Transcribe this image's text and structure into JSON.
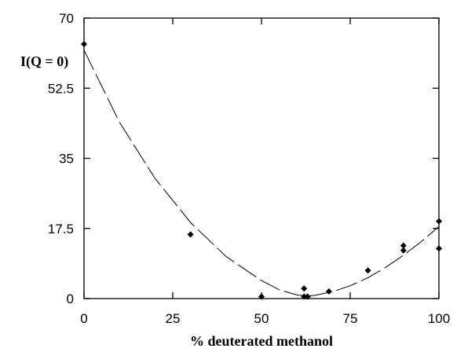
{
  "chart_data": {
    "type": "scatter",
    "xlabel": "% deuterated methanol",
    "ylabel": "I(Q = 0)",
    "xlim": [
      0,
      100
    ],
    "ylim": [
      0,
      70
    ],
    "xticks": [
      0,
      25,
      50,
      75,
      100
    ],
    "xtick_labels": [
      "0",
      "25",
      "50",
      "75",
      "100"
    ],
    "yticks": [
      0,
      17.5,
      35,
      52.5,
      70
    ],
    "ytick_labels": [
      "0",
      "17.5",
      "35",
      "52.5",
      "70"
    ],
    "grid": false,
    "series": [
      {
        "kind": "points",
        "marker": "diamond",
        "x": [
          0,
          30,
          50,
          62,
          62,
          63,
          63,
          69,
          80,
          90,
          90,
          100,
          100
        ],
        "y": [
          63.5,
          16,
          0.5,
          0.5,
          2.5,
          0.5,
          0.5,
          1.8,
          7,
          12,
          13.2,
          19.3,
          12.5
        ]
      },
      {
        "kind": "fit",
        "style": "dashed",
        "x": [
          0,
          10,
          20,
          30,
          40,
          50,
          55,
          60,
          63,
          65,
          70,
          75,
          80,
          85,
          90,
          95,
          100
        ],
        "y": [
          62,
          44,
          30,
          19,
          10.5,
          4.5,
          2.2,
          0.9,
          0.6,
          0.8,
          1.7,
          3.2,
          5.2,
          7.8,
          10.8,
          14.2,
          18
        ]
      }
    ]
  }
}
